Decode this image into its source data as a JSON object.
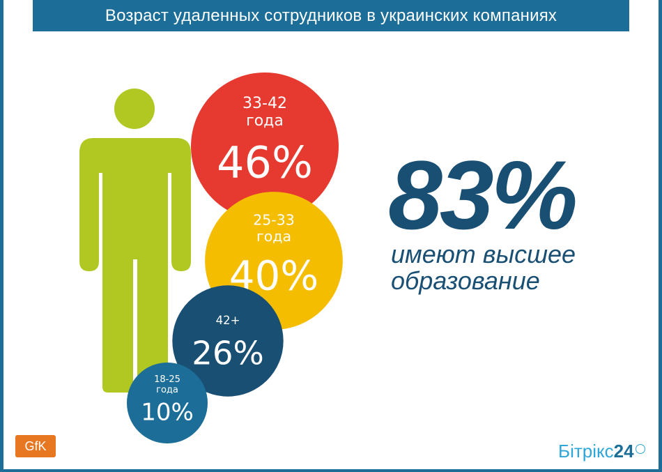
{
  "header": {
    "title": "Возраст удаленных сотрудников в украинских компаниях"
  },
  "chart_data": {
    "type": "bubble",
    "title": "Возраст удаленных сотрудников в украинских компаниях",
    "unit": "%",
    "series": [
      {
        "label_line1": "33-42",
        "label_line2": "года",
        "value": 46,
        "display": "46%",
        "color": "#e63a30"
      },
      {
        "label_line1": "25-33",
        "label_line2": "года",
        "value": 40,
        "display": "40%",
        "color": "#f5bd00"
      },
      {
        "label_line1": "42+",
        "label_line2": "",
        "value": 26,
        "display": "26%",
        "color": "#1a4f74"
      },
      {
        "label_line1": "18-25",
        "label_line2": "года",
        "value": 10,
        "display": "10%",
        "color": "#1c6e98"
      }
    ]
  },
  "stat": {
    "value": "83%",
    "caption_line1": "имеют высшее",
    "caption_line2": "образование"
  },
  "footer": {
    "source_logo": "GfK",
    "brand_text": "Бітрікс",
    "brand_number": "24"
  },
  "colors": {
    "frame": "#1c6e98",
    "figure": "#b2c822",
    "accent_dark": "#1a4f74"
  }
}
